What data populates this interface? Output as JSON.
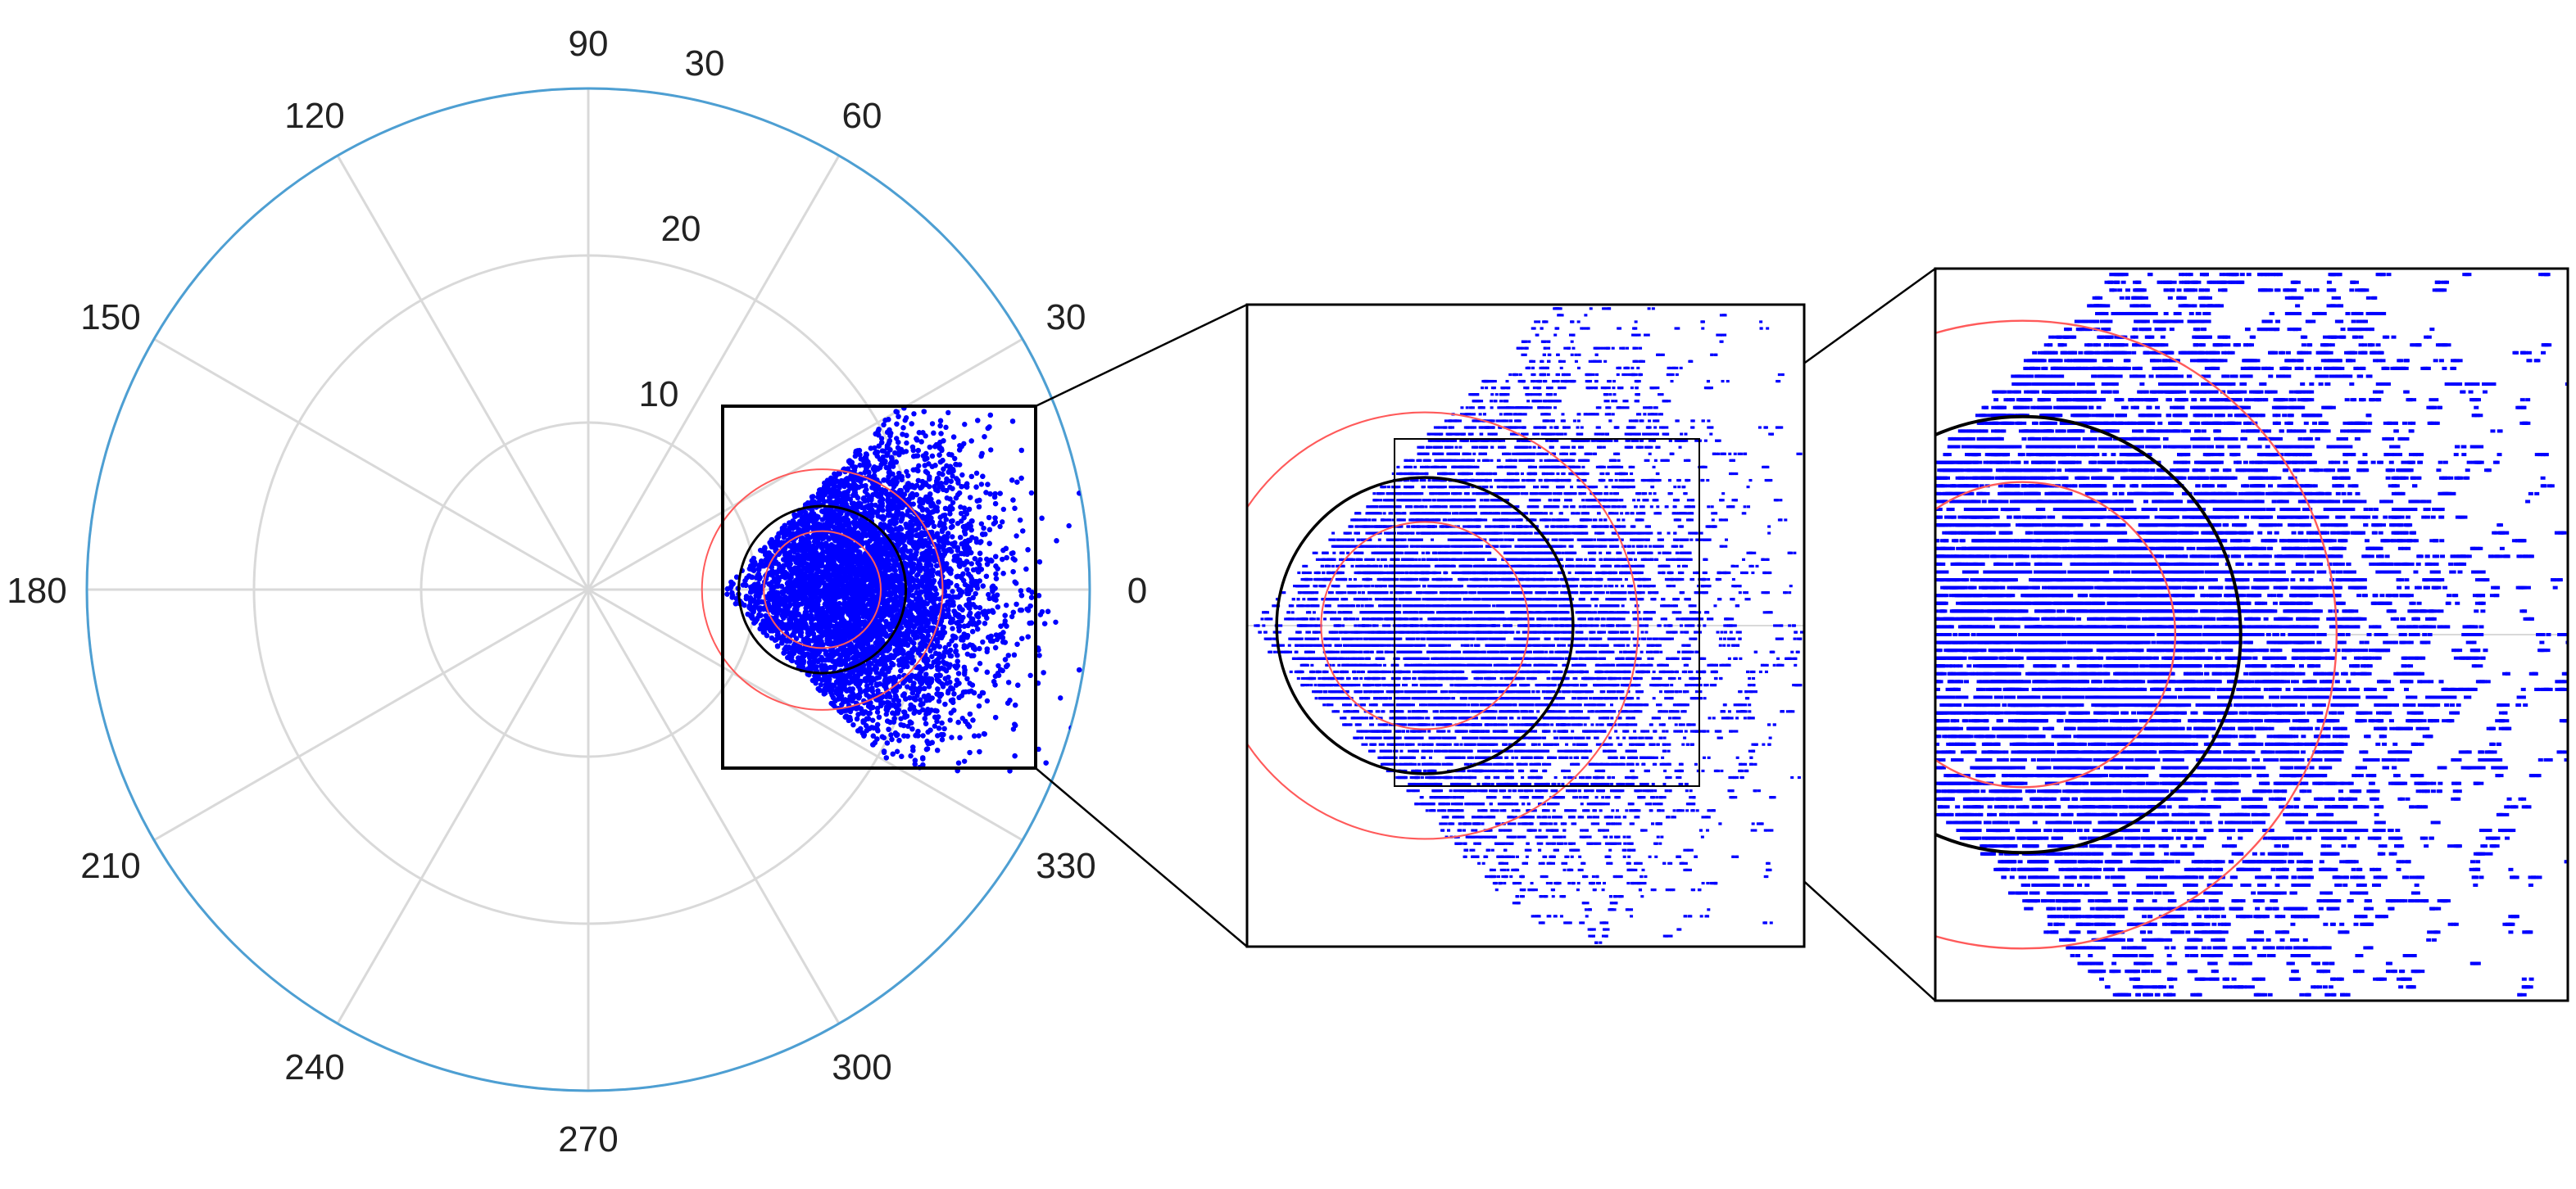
{
  "chart_data": {
    "type": "scatter",
    "coordinate_system": "polar",
    "title": "",
    "angle_ticks": [
      "0",
      "30",
      "60",
      "90",
      "120",
      "150",
      "180",
      "210",
      "240",
      "270",
      "300",
      "330"
    ],
    "radius_ticks": [
      "10",
      "20",
      "30"
    ],
    "rlim": [
      0,
      30
    ],
    "grid": true,
    "colors": {
      "points": "#0000ff",
      "reference_circle": "#000000",
      "bound_circles": "#ff5a5a",
      "grid": "#d9d9d9",
      "outer_boundary": "#4d9fd3"
    },
    "series": [
      {
        "description_key": "scattered samples",
        "x_range": [
          4,
          30
        ],
        "y_range": [
          -11,
          11
        ],
        "approx_count": 9000
      }
    ],
    "reference_circle": {
      "center": [
        14,
        0
      ],
      "radius": 5
    },
    "bound_circles": [
      {
        "center": [
          14,
          0
        ],
        "radius": 3.5
      },
      {
        "center": [
          14,
          0
        ],
        "radius": 7.2
      }
    ],
    "zoom_regions": [
      {
        "x_range": [
          8,
          26.8
        ],
        "y_range": [
          -10.8,
          10.8
        ]
      },
      {
        "x_range": [
          12,
          26.5
        ],
        "y_range": [
          -8.5,
          8.5
        ]
      }
    ]
  }
}
